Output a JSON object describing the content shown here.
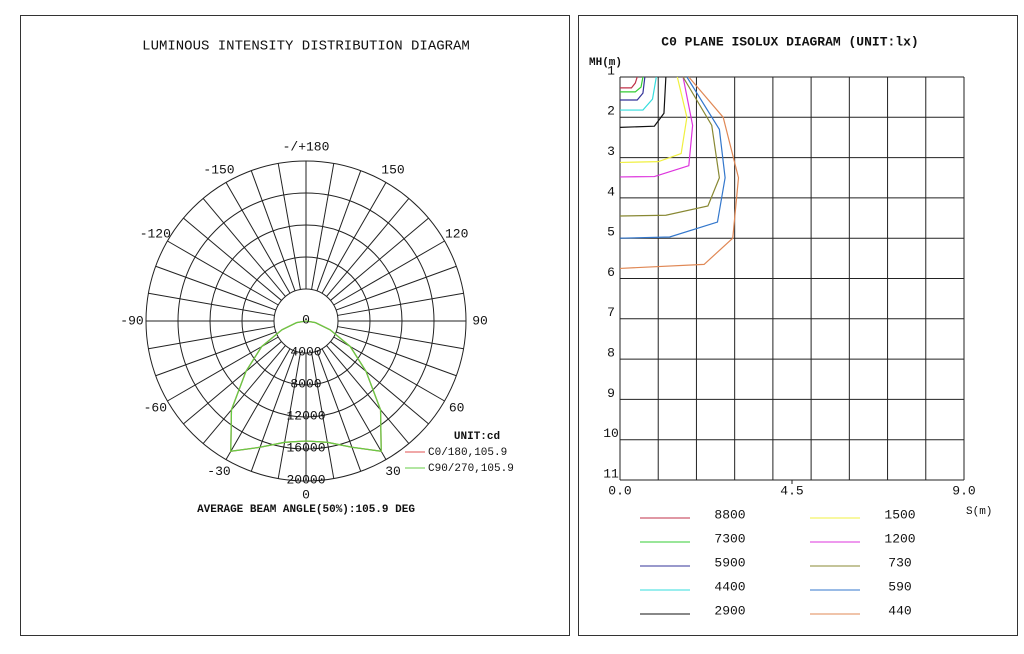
{
  "chart_data": [
    {
      "type": "polar",
      "title": "LUMINOUS INTENSITY DISTRIBUTION DIAGRAM",
      "unit": "UNIT:cd",
      "footer": "AVERAGE BEAM ANGLE(50%):105.9 DEG",
      "angle_ticks": [
        {
          "value": 180,
          "label": "-/+180"
        },
        -150,
        150,
        -120,
        120,
        -90,
        90,
        -60,
        60,
        -30,
        30,
        0
      ],
      "rlim": [
        0,
        20000
      ],
      "rticks": [
        0,
        4000,
        8000,
        12000,
        16000,
        20000
      ],
      "x": [
        -90,
        -80,
        -70,
        -60,
        -50,
        -40,
        -30,
        -20,
        -10,
        0,
        10,
        20,
        30,
        40,
        50,
        60,
        70,
        80,
        90
      ],
      "series": [
        {
          "name": "C0/180,105.9",
          "color": "#e05050",
          "values": [
            0,
            1200,
            3200,
            6400,
            9800,
            14500,
            18800,
            16800,
            15400,
            15000,
            15400,
            16800,
            18800,
            14500,
            9800,
            6400,
            3200,
            1200,
            0
          ]
        },
        {
          "name": "C90/270,105.9",
          "color": "#66cc44",
          "values": [
            0,
            1200,
            3200,
            6400,
            9800,
            14500,
            18800,
            16800,
            15400,
            15000,
            15400,
            16800,
            18800,
            14500,
            9800,
            6400,
            3200,
            1200,
            0
          ]
        }
      ]
    },
    {
      "type": "contour",
      "title": "C0 PLANE ISOLUX DIAGRAM (UNIT:lx)",
      "xlabel": "S(m)",
      "ylabel": "MH(m)",
      "xlim": [
        0,
        9
      ],
      "ylim": [
        1,
        11
      ],
      "y_inverted": true,
      "grid": true,
      "xticks": [
        {
          "value": 0,
          "label": "0.0"
        },
        {
          "value": 4.5,
          "label": "4.5"
        },
        {
          "value": 9,
          "label": "9.0"
        }
      ],
      "yticks": [
        1,
        2,
        3,
        4,
        5,
        6,
        7,
        8,
        9,
        10,
        11
      ],
      "series": [
        {
          "name": "8800",
          "color": "#c03048",
          "x": [
            0.45,
            0.4,
            0.3,
            0
          ],
          "values": [
            1,
            1.15,
            1.27,
            1.27
          ]
        },
        {
          "name": "7300",
          "color": "#33cc33",
          "x": [
            0.6,
            0.55,
            0.4,
            0
          ],
          "values": [
            1,
            1.25,
            1.37,
            1.37
          ]
        },
        {
          "name": "5900",
          "color": "#333399",
          "x": [
            0.65,
            0.6,
            0.45,
            0
          ],
          "values": [
            1,
            1.4,
            1.57,
            1.57
          ]
        },
        {
          "name": "4400",
          "color": "#33dddd",
          "x": [
            0.95,
            0.85,
            0.6,
            0
          ],
          "values": [
            1,
            1.55,
            1.82,
            1.82
          ]
        },
        {
          "name": "2900",
          "color": "#111111",
          "x": [
            1.2,
            1.15,
            0.9,
            0
          ],
          "values": [
            1,
            1.9,
            2.22,
            2.25
          ]
        },
        {
          "name": "1500",
          "color": "#f0f040",
          "x": [
            1.5,
            1.75,
            1.6,
            1.0,
            0
          ],
          "values": [
            1,
            2.0,
            2.9,
            3.1,
            3.12
          ]
        },
        {
          "name": "1200",
          "color": "#dd33dd",
          "x": [
            1.65,
            1.9,
            1.8,
            0.9,
            0
          ],
          "values": [
            1,
            2.2,
            3.2,
            3.47,
            3.48
          ]
        },
        {
          "name": "730",
          "color": "#888833",
          "x": [
            1.65,
            2.4,
            2.6,
            2.3,
            1.2,
            0
          ],
          "values": [
            1,
            2.2,
            3.5,
            4.2,
            4.43,
            4.45
          ]
        },
        {
          "name": "590",
          "color": "#3377cc",
          "x": [
            1.75,
            2.6,
            2.75,
            2.55,
            1.3,
            0
          ],
          "values": [
            1,
            2.3,
            3.5,
            4.6,
            4.97,
            5.0
          ]
        },
        {
          "name": "440",
          "color": "#e08855",
          "x": [
            1.8,
            2.7,
            3.1,
            2.95,
            2.2,
            0
          ],
          "values": [
            1,
            2.0,
            3.5,
            5.0,
            5.65,
            5.75
          ]
        }
      ]
    }
  ]
}
